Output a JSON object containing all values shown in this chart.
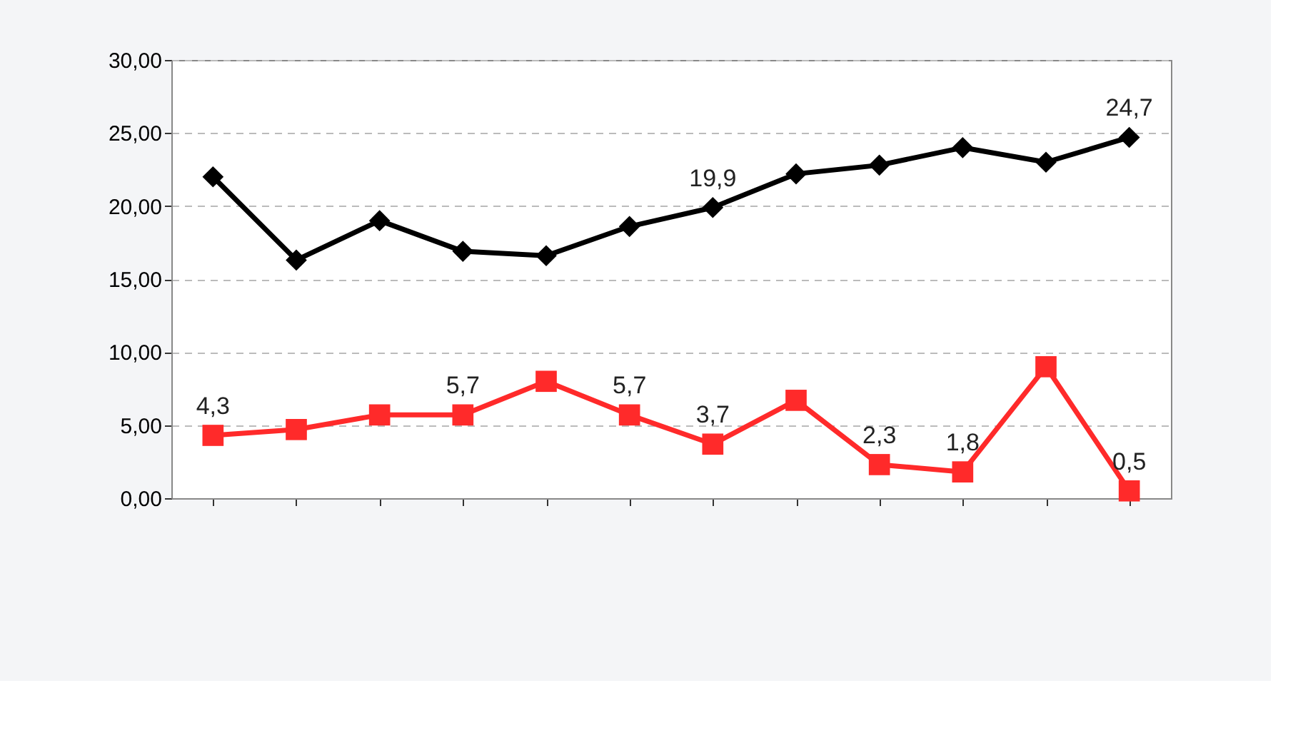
{
  "chart_data": {
    "type": "line",
    "categories": [
      null,
      null,
      null,
      null,
      null,
      null,
      null,
      null,
      null,
      null,
      null,
      null
    ],
    "series": [
      {
        "color": "#000000",
        "marker": "diamond",
        "values": [
          22.0,
          16.3,
          19.0,
          16.9,
          16.6,
          18.6,
          19.9,
          22.2,
          22.8,
          24.0,
          23.0,
          24.7
        ],
        "value_labels": [
          null,
          null,
          null,
          null,
          null,
          null,
          "19,9",
          null,
          null,
          null,
          null,
          "24,7"
        ]
      },
      {
        "color": "#ff2a2a",
        "marker": "square",
        "values": [
          4.3,
          4.7,
          5.7,
          5.7,
          8.0,
          5.7,
          3.7,
          6.7,
          2.3,
          1.8,
          9.0,
          0.5
        ],
        "value_labels": [
          "4,3",
          null,
          null,
          "5,7",
          null,
          "5,7",
          "3,7",
          null,
          "2,3",
          "1,8",
          null,
          "0,5"
        ]
      }
    ],
    "ylim": [
      0,
      30
    ],
    "yticks": [
      {
        "value": 0,
        "label": "0,00"
      },
      {
        "value": 5,
        "label": "5,00"
      },
      {
        "value": 10,
        "label": "10,00"
      },
      {
        "value": 15,
        "label": "15,00"
      },
      {
        "value": 20,
        "label": "20,00"
      },
      {
        "value": 25,
        "label": "25,00"
      },
      {
        "value": 30,
        "label": "30,00"
      }
    ],
    "grid": "y",
    "tick_labels": "y"
  }
}
